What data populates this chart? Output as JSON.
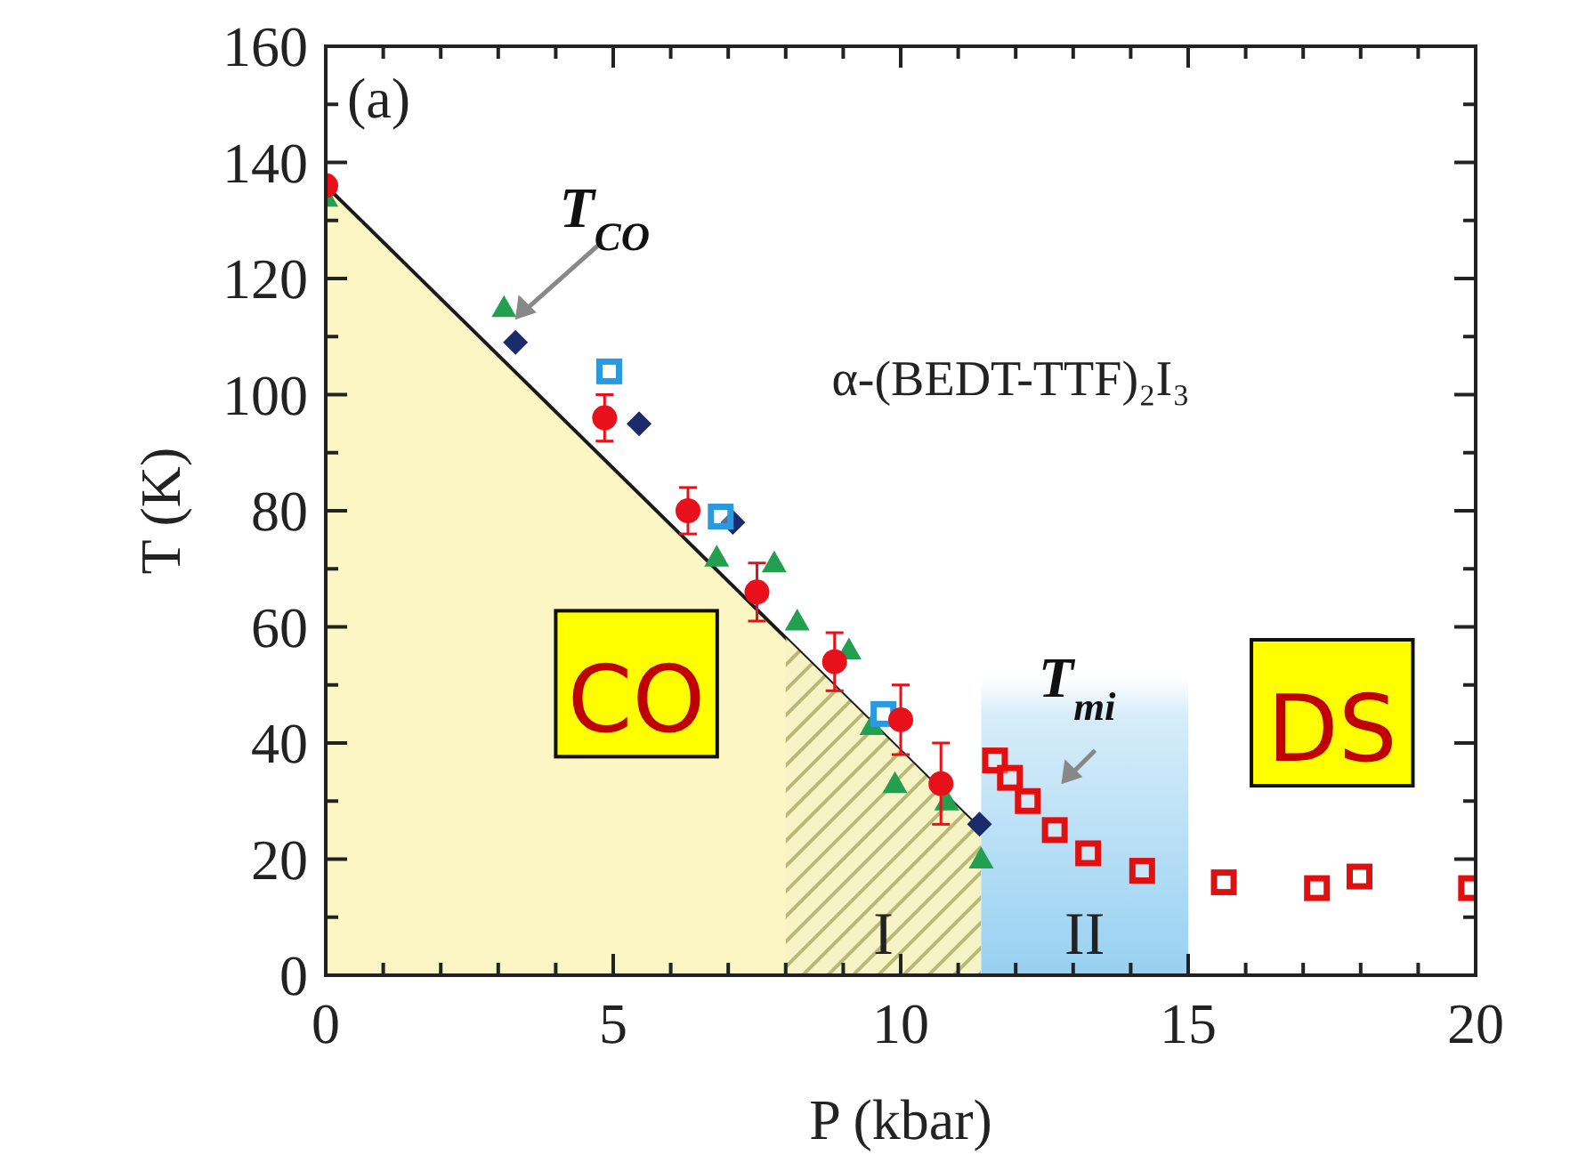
{
  "chart_data": {
    "type": "scatter",
    "xlabel": "P (kbar)",
    "ylabel": "T (K)",
    "xlim": [
      0,
      20
    ],
    "ylim": [
      0,
      160
    ],
    "xticks": [
      0,
      {
        "value": 1,
        "label": null
      },
      {
        "value": 2,
        "label": null
      },
      {
        "value": 3,
        "label": null
      },
      {
        "value": 4,
        "label": null
      },
      5,
      {
        "value": 6,
        "label": null
      },
      {
        "value": 7,
        "label": null
      },
      {
        "value": 8,
        "label": null
      },
      {
        "value": 9,
        "label": null
      },
      10,
      {
        "value": 11,
        "label": null
      },
      {
        "value": 12,
        "label": null
      },
      {
        "value": 13,
        "label": null
      },
      {
        "value": 14,
        "label": null
      },
      15,
      {
        "value": 16,
        "label": null
      },
      {
        "value": 17,
        "label": null
      },
      {
        "value": 18,
        "label": null
      },
      {
        "value": 19,
        "label": null
      },
      20
    ],
    "yticks": [
      0,
      {
        "value": 10,
        "label": null
      },
      20,
      {
        "value": 30,
        "label": null
      },
      40,
      {
        "value": 50,
        "label": null
      },
      60,
      {
        "value": 70,
        "label": null
      },
      80,
      {
        "value": 90,
        "label": null
      },
      100,
      {
        "value": 110,
        "label": null
      },
      120,
      {
        "value": 130,
        "label": null
      },
      140,
      {
        "value": 150,
        "label": null
      },
      160
    ],
    "bands": [
      {
        "axis": "x",
        "from": 8,
        "to": 11.4,
        "label": "I",
        "color": "#b8b878"
      },
      {
        "axis": "x",
        "from": 11.4,
        "to": 15,
        "label": "II",
        "color": "#8ccbf0"
      }
    ],
    "series": [
      {
        "type": "area",
        "color": "#fbf6c4",
        "x": [
          0,
          11.4
        ],
        "values": [
          136,
          25
        ]
      },
      {
        "color": "#22a050",
        "marker": "triangle",
        "x": [
          0,
          3.1,
          6.8,
          7.8,
          8.2,
          9.1,
          9.5,
          9.9,
          10.8,
          11.4
        ],
        "values": [
          134,
          115,
          72,
          71,
          61,
          56,
          43,
          33,
          30,
          20
        ]
      },
      {
        "color": "#1a2a6b",
        "marker": "diamond",
        "x": [
          3.3,
          5.45,
          7.08,
          11.37
        ],
        "values": [
          109,
          95,
          78,
          26
        ]
      },
      {
        "color": "#2a9ae0",
        "marker": "square",
        "x": [
          4.93,
          6.87,
          9.7
        ],
        "values": [
          104,
          79,
          45
        ]
      },
      {
        "color": "#e8101a",
        "marker": "circle",
        "x": [
          0,
          4.85,
          6.3,
          7.5,
          8.85,
          10,
          10.7
        ],
        "values": [
          136,
          96,
          80,
          66,
          54,
          44,
          33
        ],
        "errors": [
          null,
          4,
          4,
          5,
          5,
          6,
          7
        ]
      },
      {
        "color": "#e01010",
        "marker": "square",
        "x": [
          11.64,
          11.9,
          12.21,
          12.68,
          13.26,
          14.2,
          15.62,
          17.24,
          17.98,
          19.92
        ],
        "values": [
          37,
          34,
          30,
          25,
          21,
          18,
          16,
          15,
          17,
          15
        ]
      }
    ],
    "annotations": [
      "(a)",
      {
        "text": "T$_{CO}$",
        "x": 3.2,
        "y": 112
      },
      "T$_{mi}$",
      "α-(BEDT-TTF)₂I₃",
      "CO",
      "DS"
    ]
  }
}
